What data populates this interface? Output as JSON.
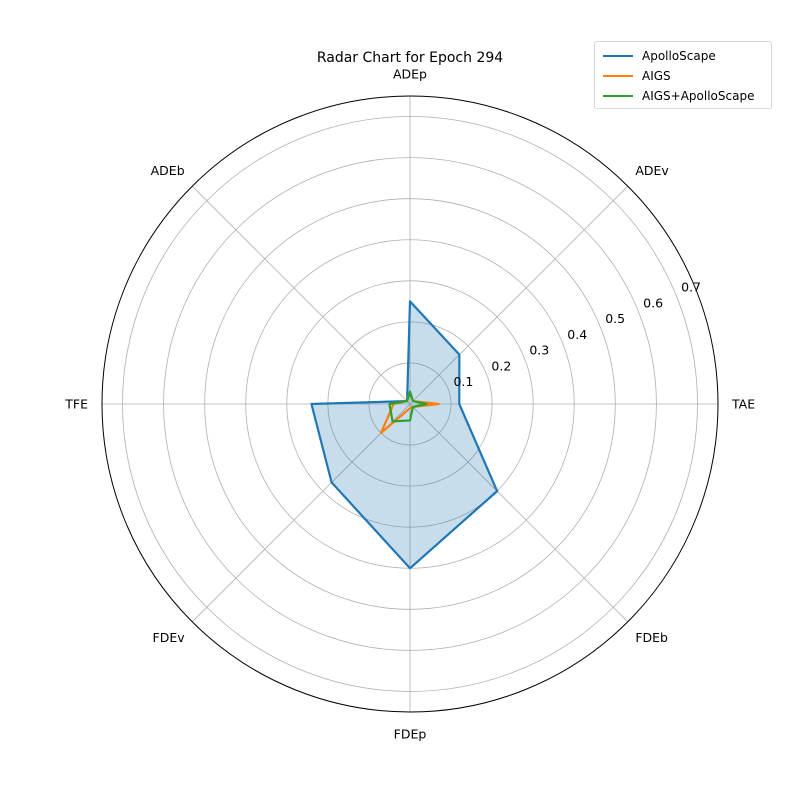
{
  "chart_data": {
    "type": "radar",
    "title": "Radar Chart for Epoch 294",
    "axes": [
      "TAE",
      "ADEv",
      "ADEp",
      "ADEb",
      "TFE",
      "FDEv",
      "FDEp",
      "FDEb"
    ],
    "rlim": [
      0,
      0.75
    ],
    "rticks": [
      0.1,
      0.2,
      0.3,
      0.4,
      0.5,
      0.6,
      0.7
    ],
    "rtick_labels": [
      "0.1",
      "0.2",
      "0.3",
      "0.4",
      "0.5",
      "0.6",
      "0.7"
    ],
    "grid": true,
    "legend_position": "top-right",
    "series": [
      {
        "name": "ApolloScape",
        "color": "#1f77b4",
        "filled": true,
        "values": [
          0.12,
          0.17,
          0.25,
          0.01,
          0.24,
          0.27,
          0.4,
          0.3
        ]
      },
      {
        "name": "AIGS",
        "color": "#ff7f0e",
        "filled": false,
        "values": [
          0.07,
          0.01,
          0.03,
          0.01,
          0.04,
          0.1,
          0.01,
          0.01
        ]
      },
      {
        "name": "AIGS+ApolloScape",
        "color": "#2ca02c",
        "filled": false,
        "values": [
          0.04,
          0.01,
          0.03,
          0.01,
          0.05,
          0.06,
          0.04,
          0.01
        ]
      }
    ]
  }
}
